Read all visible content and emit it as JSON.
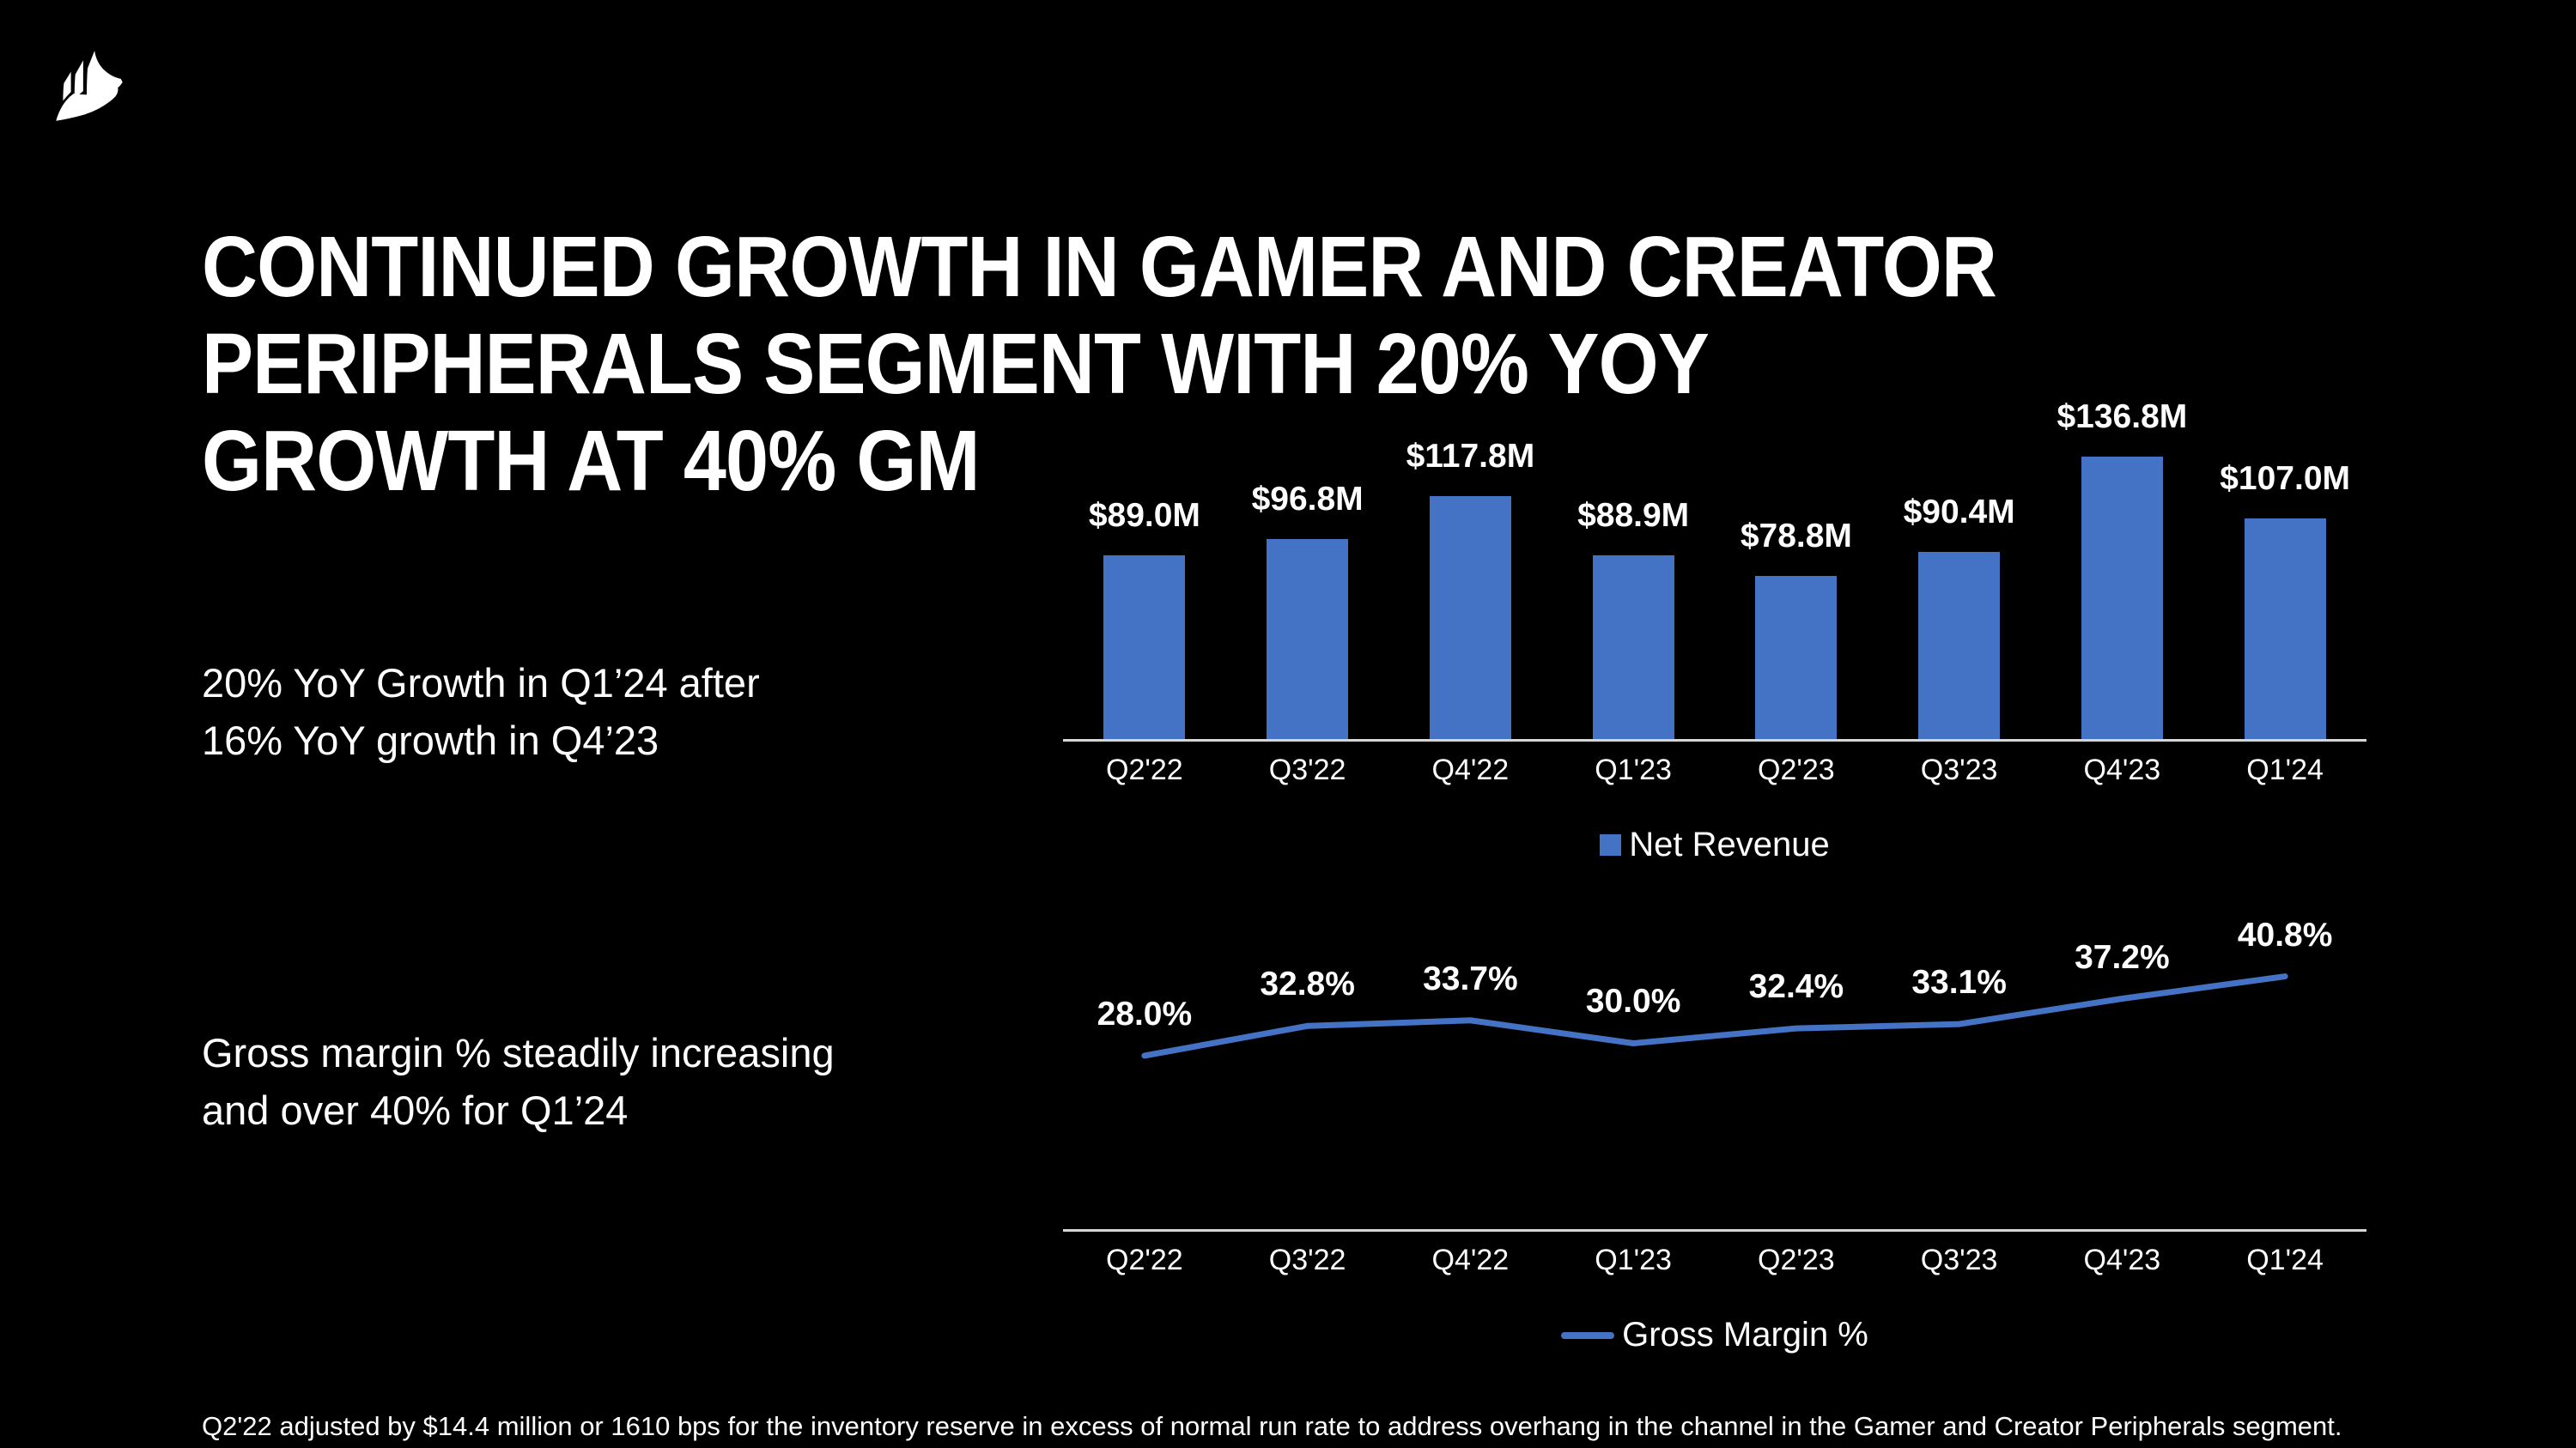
{
  "theme": {
    "background": "#000000",
    "text_color": "#ffffff",
    "accent_blue": "#4472C4",
    "axis_line_color": "#d6d6d6"
  },
  "logo": {
    "name": "corsair-sails-logo",
    "color": "#ffffff"
  },
  "title": {
    "lines": [
      "CONTINUED GROWTH IN GAMER AND CREATOR",
      "PERIPHERALS SEGMENT WITH 20% YOY",
      "GROWTH AT 40% GM"
    ]
  },
  "callouts": {
    "revenue": {
      "lines": [
        "20% YoY Growth in Q1’24 after",
        "16% YoY growth in Q4’23"
      ]
    },
    "margin": {
      "lines": [
        "Gross margin % steadily increasing",
        "and over 40% for Q1’24"
      ]
    }
  },
  "footnote": "Q2'22 adjusted by $14.4 million or 1610 bps for the inventory reserve in excess of normal run rate to address overhang in the channel in the Gamer and Creator Peripherals segment.",
  "chart_data": [
    {
      "type": "bar",
      "title": "",
      "categories": [
        "Q2'22",
        "Q3'22",
        "Q4'22",
        "Q1'23",
        "Q2'23",
        "Q3'23",
        "Q4'23",
        "Q1'24"
      ],
      "values": [
        89.0,
        96.8,
        117.8,
        88.9,
        78.8,
        90.4,
        136.8,
        107.0
      ],
      "data_labels": [
        "$89.0M",
        "$96.8M",
        "$117.8M",
        "$88.9M",
        "$78.8M",
        "$90.4M",
        "$136.8M",
        "$107.0M"
      ],
      "unit": "USD millions",
      "legend": "Net Revenue",
      "legend_position": "bottom-center",
      "bar_color": "#4472C4",
      "xlabel": "",
      "ylabel": "",
      "ylim": [
        0,
        150
      ],
      "grid": false
    },
    {
      "type": "line",
      "title": "",
      "categories": [
        "Q2'22",
        "Q3'22",
        "Q4'22",
        "Q1'23",
        "Q2'23",
        "Q3'23",
        "Q4'23",
        "Q1'24"
      ],
      "values": [
        28.0,
        32.8,
        33.7,
        30.0,
        32.4,
        33.1,
        37.2,
        40.8
      ],
      "data_labels": [
        "28.0%",
        "32.8%",
        "33.7%",
        "30.0%",
        "32.4%",
        "33.1%",
        "37.2%",
        "40.8%"
      ],
      "unit": "percent",
      "legend": "Gross Margin %",
      "legend_position": "bottom-center",
      "line_color": "#4472C4",
      "xlabel": "",
      "ylabel": "",
      "ylim": [
        0,
        46
      ],
      "grid": false
    }
  ]
}
